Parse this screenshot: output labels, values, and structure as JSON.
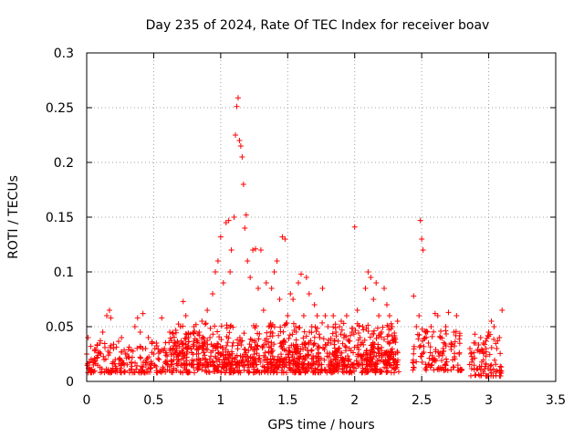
{
  "chart_data": {
    "type": "scatter",
    "title": "Day 235 of 2024, Rate Of TEC Index for receiver boav",
    "xlabel": "GPS time / hours",
    "ylabel": "ROTI / TECUs",
    "xlim": [
      0,
      3.5
    ],
    "ylim": [
      0,
      0.3
    ],
    "xticks": [
      0,
      0.5,
      1,
      1.5,
      2,
      2.5,
      3,
      3.5
    ],
    "xtick_labels": [
      "0",
      "0.5",
      "1",
      "1.5",
      "2",
      "2.5",
      "3",
      "3.5"
    ],
    "yticks": [
      0,
      0.05,
      0.1,
      0.15,
      0.2,
      0.25,
      0.3
    ],
    "ytick_labels": [
      "0",
      "0.05",
      "0.1",
      "0.15",
      "0.2",
      "0.25",
      "0.3"
    ],
    "grid": true,
    "marker": "+",
    "color": "#ff0000",
    "series": [
      {
        "name": "ROTI",
        "points": [
          [
            0.0,
            0.025
          ],
          [
            0.01,
            0.04
          ],
          [
            0.02,
            0.018
          ],
          [
            0.03,
            0.032
          ],
          [
            0.05,
            0.015
          ],
          [
            0.06,
            0.028
          ],
          [
            0.08,
            0.022
          ],
          [
            0.1,
            0.035
          ],
          [
            0.12,
            0.045
          ],
          [
            0.13,
            0.02
          ],
          [
            0.15,
            0.06
          ],
          [
            0.17,
            0.065
          ],
          [
            0.18,
            0.058
          ],
          [
            0.2,
            0.03
          ],
          [
            0.22,
            0.012
          ],
          [
            0.24,
            0.02
          ],
          [
            0.26,
            0.04
          ],
          [
            0.28,
            0.015
          ],
          [
            0.3,
            0.025
          ],
          [
            0.32,
            0.01
          ],
          [
            0.34,
            0.022
          ],
          [
            0.36,
            0.05
          ],
          [
            0.38,
            0.058
          ],
          [
            0.4,
            0.045
          ],
          [
            0.42,
            0.062
          ],
          [
            0.44,
            0.03
          ],
          [
            0.46,
            0.04
          ],
          [
            0.48,
            0.015
          ],
          [
            0.5,
            0.025
          ],
          [
            0.52,
            0.035
          ],
          [
            0.54,
            0.02
          ],
          [
            0.56,
            0.058
          ],
          [
            0.58,
            0.03
          ],
          [
            0.6,
            0.018
          ],
          [
            0.62,
            0.045
          ],
          [
            0.64,
            0.025
          ],
          [
            0.66,
            0.035
          ],
          [
            0.68,
            0.02
          ],
          [
            0.7,
            0.05
          ],
          [
            0.72,
            0.073
          ],
          [
            0.74,
            0.06
          ],
          [
            0.76,
            0.04
          ],
          [
            0.78,
            0.03
          ],
          [
            0.8,
            0.05
          ],
          [
            0.82,
            0.025
          ],
          [
            0.84,
            0.045
          ],
          [
            0.86,
            0.055
          ],
          [
            0.88,
            0.035
          ],
          [
            0.9,
            0.065
          ],
          [
            0.92,
            0.04
          ],
          [
            0.94,
            0.08
          ],
          [
            0.96,
            0.1
          ],
          [
            0.98,
            0.11
          ],
          [
            1.0,
            0.132
          ],
          [
            1.02,
            0.09
          ],
          [
            1.04,
            0.145
          ],
          [
            1.06,
            0.147
          ],
          [
            1.07,
            0.1
          ],
          [
            1.08,
            0.12
          ],
          [
            1.1,
            0.15
          ],
          [
            1.11,
            0.225
          ],
          [
            1.12,
            0.251
          ],
          [
            1.13,
            0.259
          ],
          [
            1.14,
            0.22
          ],
          [
            1.15,
            0.215
          ],
          [
            1.16,
            0.205
          ],
          [
            1.17,
            0.18
          ],
          [
            1.18,
            0.14
          ],
          [
            1.19,
            0.152
          ],
          [
            1.2,
            0.11
          ],
          [
            1.22,
            0.095
          ],
          [
            1.24,
            0.12
          ],
          [
            1.26,
            0.121
          ],
          [
            1.28,
            0.085
          ],
          [
            1.3,
            0.12
          ],
          [
            1.32,
            0.065
          ],
          [
            1.34,
            0.09
          ],
          [
            1.36,
            0.05
          ],
          [
            1.38,
            0.085
          ],
          [
            1.4,
            0.1
          ],
          [
            1.42,
            0.11
          ],
          [
            1.44,
            0.075
          ],
          [
            1.46,
            0.132
          ],
          [
            1.48,
            0.13
          ],
          [
            1.5,
            0.06
          ],
          [
            1.52,
            0.08
          ],
          [
            1.54,
            0.075
          ],
          [
            1.56,
            0.05
          ],
          [
            1.58,
            0.09
          ],
          [
            1.6,
            0.098
          ],
          [
            1.62,
            0.06
          ],
          [
            1.64,
            0.095
          ],
          [
            1.66,
            0.08
          ],
          [
            1.68,
            0.05
          ],
          [
            1.7,
            0.07
          ],
          [
            1.72,
            0.06
          ],
          [
            1.74,
            0.04
          ],
          [
            1.76,
            0.085
          ],
          [
            1.78,
            0.06
          ],
          [
            1.8,
            0.05
          ],
          [
            1.82,
            0.035
          ],
          [
            1.84,
            0.06
          ],
          [
            1.86,
            0.045
          ],
          [
            1.88,
            0.03
          ],
          [
            1.9,
            0.055
          ],
          [
            1.92,
            0.04
          ],
          [
            1.94,
            0.06
          ],
          [
            1.96,
            0.03
          ],
          [
            1.98,
            0.045
          ],
          [
            2.0,
            0.141
          ],
          [
            2.02,
            0.065
          ],
          [
            2.04,
            0.04
          ],
          [
            2.06,
            0.05
          ],
          [
            2.08,
            0.085
          ],
          [
            2.1,
            0.1
          ],
          [
            2.12,
            0.095
          ],
          [
            2.14,
            0.075
          ],
          [
            2.16,
            0.09
          ],
          [
            2.18,
            0.06
          ],
          [
            2.2,
            0.045
          ],
          [
            2.22,
            0.085
          ],
          [
            2.24,
            0.07
          ],
          [
            2.26,
            0.06
          ],
          [
            2.28,
            0.05
          ],
          [
            2.3,
            0.04
          ],
          [
            2.32,
            0.055
          ],
          [
            2.44,
            0.078
          ],
          [
            2.46,
            0.05
          ],
          [
            2.48,
            0.06
          ],
          [
            2.49,
            0.147
          ],
          [
            2.5,
            0.13
          ],
          [
            2.51,
            0.12
          ],
          [
            2.53,
            0.045
          ],
          [
            2.55,
            0.035
          ],
          [
            2.57,
            0.05
          ],
          [
            2.6,
            0.062
          ],
          [
            2.62,
            0.06
          ],
          [
            2.64,
            0.04
          ],
          [
            2.66,
            0.03
          ],
          [
            2.68,
            0.05
          ],
          [
            2.7,
            0.063
          ],
          [
            2.72,
            0.035
          ],
          [
            2.74,
            0.045
          ],
          [
            2.76,
            0.06
          ],
          [
            2.78,
            0.025
          ],
          [
            2.86,
            0.03
          ],
          [
            2.88,
            0.02
          ],
          [
            2.9,
            0.035
          ],
          [
            2.92,
            0.028
          ],
          [
            2.94,
            0.04
          ],
          [
            2.96,
            0.035
          ],
          [
            2.98,
            0.03
          ],
          [
            3.0,
            0.045
          ],
          [
            3.02,
            0.055
          ],
          [
            3.04,
            0.05
          ],
          [
            3.06,
            0.03
          ],
          [
            3.08,
            0.04
          ],
          [
            3.1,
            0.065
          ]
        ]
      }
    ],
    "dense_bands": [
      {
        "x_from": 0.0,
        "x_to": 2.33,
        "y_from": 0.008,
        "y_to": 0.035
      },
      {
        "x_from": 0.6,
        "x_to": 2.33,
        "y_from": 0.015,
        "y_to": 0.05
      },
      {
        "x_from": 2.43,
        "x_to": 2.8,
        "y_from": 0.01,
        "y_to": 0.045
      },
      {
        "x_from": 2.85,
        "x_to": 3.1,
        "y_from": 0.005,
        "y_to": 0.04
      }
    ]
  }
}
